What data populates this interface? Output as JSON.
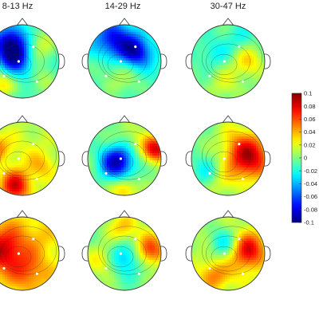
{
  "figure": {
    "band_titles": [
      "8-13 Hz",
      "14-29 Hz",
      "30-47 Hz"
    ],
    "colorbar": {
      "min": -0.1,
      "max": 0.1,
      "tick_labels": [
        "0.1",
        "0.08",
        "0.06",
        "0.04",
        "0.02",
        "0",
        "-0.02",
        "-0.04",
        "-0.06",
        "-0.08",
        "-0.1"
      ],
      "colormap": "jet"
    },
    "rows": [
      [
        "Row 1 / 8-13 Hz",
        "Row 1 / 14-29 Hz",
        "Row 1 / 30-47 Hz"
      ],
      [
        "Row 2 / 8-13 Hz",
        "Row 2 / 14-29 Hz",
        "Row 2 / 30-47 Hz"
      ],
      [
        "Row 3 / 8-13 Hz",
        "Row 3 / 14-29 Hz",
        "Row 3 / 30-47 Hz"
      ]
    ],
    "colors": {
      "jet_dark_blue": "#00008f",
      "jet_blue": "#0000ff",
      "jet_cyan": "#00ffff",
      "jet_yellow": "#ffff00",
      "jet_red": "#ff0000",
      "jet_dark_red": "#800000"
    }
  }
}
